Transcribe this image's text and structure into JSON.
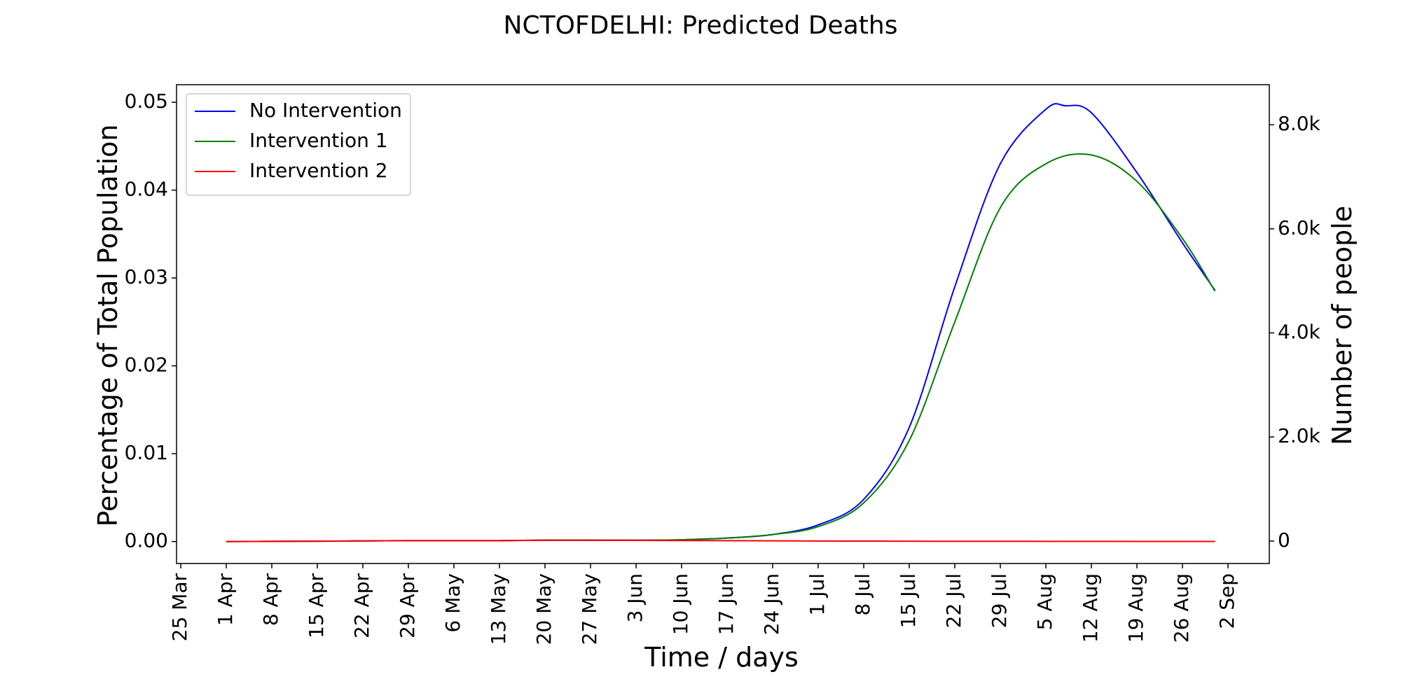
{
  "chart_data": {
    "type": "line",
    "title": "NCTOFDELHI: Predicted Deaths",
    "xlabel": "Time / days",
    "ylabel": "Percentage of Total Population",
    "ylabel_right": "Number of people",
    "x_ticks": [
      "25 Mar",
      "1 Apr",
      "8 Apr",
      "15 Apr",
      "22 Apr",
      "29 Apr",
      "6 May",
      "13 May",
      "20 May",
      "27 May",
      "3 Jun",
      "10 Jun",
      "17 Jun",
      "24 Jun",
      "1 Jul",
      "8 Jul",
      "15 Jul",
      "22 Jul",
      "29 Jul",
      "5 Aug",
      "12 Aug",
      "19 Aug",
      "26 Aug",
      "2 Sep"
    ],
    "y_ticks": [
      "0.00",
      "0.01",
      "0.02",
      "0.03",
      "0.04",
      "0.05"
    ],
    "y_tick_values": [
      0,
      0.01,
      0.02,
      0.03,
      0.04,
      0.05
    ],
    "y_right_ticks": [
      "0",
      "2.0k",
      "4.0k",
      "6.0k",
      "8.0k"
    ],
    "y_right_tick_values": [
      0,
      2000,
      4000,
      6000,
      8000
    ],
    "ylim": [
      -0.0025,
      0.052
    ],
    "ylim_right": [
      -432,
      8770
    ],
    "legend_position": "top-left",
    "grid": false,
    "series": [
      {
        "name": "No Intervention",
        "color": "#0000ff",
        "x": [
          "1 Apr",
          "8 Apr",
          "15 Apr",
          "22 Apr",
          "29 Apr",
          "6 May",
          "13 May",
          "20 May",
          "27 May",
          "3 Jun",
          "10 Jun",
          "17 Jun",
          "24 Jun",
          "1 Jul",
          "8 Jul",
          "15 Jul",
          "22 Jul",
          "29 Jul",
          "5 Aug",
          "8 Aug",
          "12 Aug",
          "19 Aug",
          "26 Aug",
          "31 Aug"
        ],
        "y": [
          0,
          2e-05,
          4e-05,
          7e-05,
          0.0001,
          0.0001,
          0.0001,
          0.00015,
          0.00015,
          0.00015,
          0.0002,
          0.0004,
          0.0008,
          0.0019,
          0.0048,
          0.013,
          0.029,
          0.043,
          0.0492,
          0.0496,
          0.0488,
          0.042,
          0.034,
          0.0286
        ]
      },
      {
        "name": "Intervention 1",
        "color": "#008000",
        "x": [
          "1 Apr",
          "8 Apr",
          "15 Apr",
          "22 Apr",
          "29 Apr",
          "6 May",
          "13 May",
          "20 May",
          "27 May",
          "3 Jun",
          "10 Jun",
          "17 Jun",
          "24 Jun",
          "1 Jul",
          "8 Jul",
          "15 Jul",
          "22 Jul",
          "29 Jul",
          "5 Aug",
          "12 Aug",
          "19 Aug",
          "26 Aug",
          "31 Aug"
        ],
        "y": [
          0,
          2e-05,
          4e-05,
          7e-05,
          0.0001,
          0.0001,
          0.0001,
          0.00015,
          0.00015,
          0.00015,
          0.0002,
          0.0004,
          0.0008,
          0.0017,
          0.0044,
          0.0115,
          0.025,
          0.038,
          0.043,
          0.044,
          0.041,
          0.0345,
          0.0285
        ]
      },
      {
        "name": "Intervention 2",
        "color": "#ff0000",
        "x": [
          "1 Apr",
          "8 Apr",
          "15 Apr",
          "22 Apr",
          "29 Apr",
          "6 May",
          "13 May",
          "20 May",
          "27 May",
          "3 Jun",
          "10 Jun",
          "17 Jun",
          "24 Jun",
          "1 Jul",
          "8 Jul",
          "15 Jul",
          "22 Jul",
          "29 Jul",
          "5 Aug",
          "12 Aug",
          "19 Aug",
          "26 Aug",
          "31 Aug"
        ],
        "y": [
          0,
          2e-05,
          4e-05,
          7e-05,
          0.0001,
          0.0001,
          0.0001,
          0.00015,
          0.00015,
          0.00013,
          0.00011,
          0.0001,
          8e-05,
          6e-05,
          5e-05,
          4e-05,
          3e-05,
          3e-05,
          2e-05,
          2e-05,
          1e-05,
          1e-05,
          1e-05
        ]
      }
    ]
  }
}
